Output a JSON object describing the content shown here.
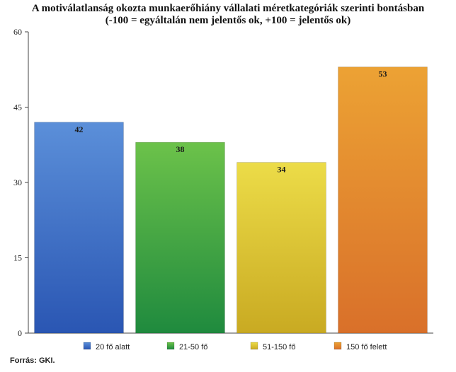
{
  "chart_data": {
    "type": "bar",
    "title": "A motiválatlanság okozta munkaerőhiány vállalati méretkategóriák szerinti bontásban",
    "subtitle": "(-100 = egyáltalán nem jelentős ok, +100 = jelentős ok)",
    "categories": [
      "20 fő alatt",
      "21-50 fő",
      "51-150 fő",
      "150 fő felett"
    ],
    "values": [
      42,
      38,
      34,
      53
    ],
    "data_labels": [
      "42",
      "38",
      "34",
      "53"
    ],
    "ylim": [
      0,
      60
    ],
    "yticks": [
      0,
      15,
      30,
      45,
      60
    ],
    "ytick_labels": [
      "0",
      "15",
      "30",
      "45",
      "60"
    ],
    "xlabel": "",
    "ylabel": "",
    "grid": false,
    "legend_position": "bottom",
    "colors": [
      {
        "top": "#5b8fd9",
        "bottom": "#2a56b3"
      },
      {
        "top": "#6cc24a",
        "bottom": "#1f8a3e"
      },
      {
        "top": "#ecdc48",
        "bottom": "#c9aa22"
      },
      {
        "top": "#eca234",
        "bottom": "#d9702a"
      }
    ]
  },
  "source": "Forrás: GKI."
}
